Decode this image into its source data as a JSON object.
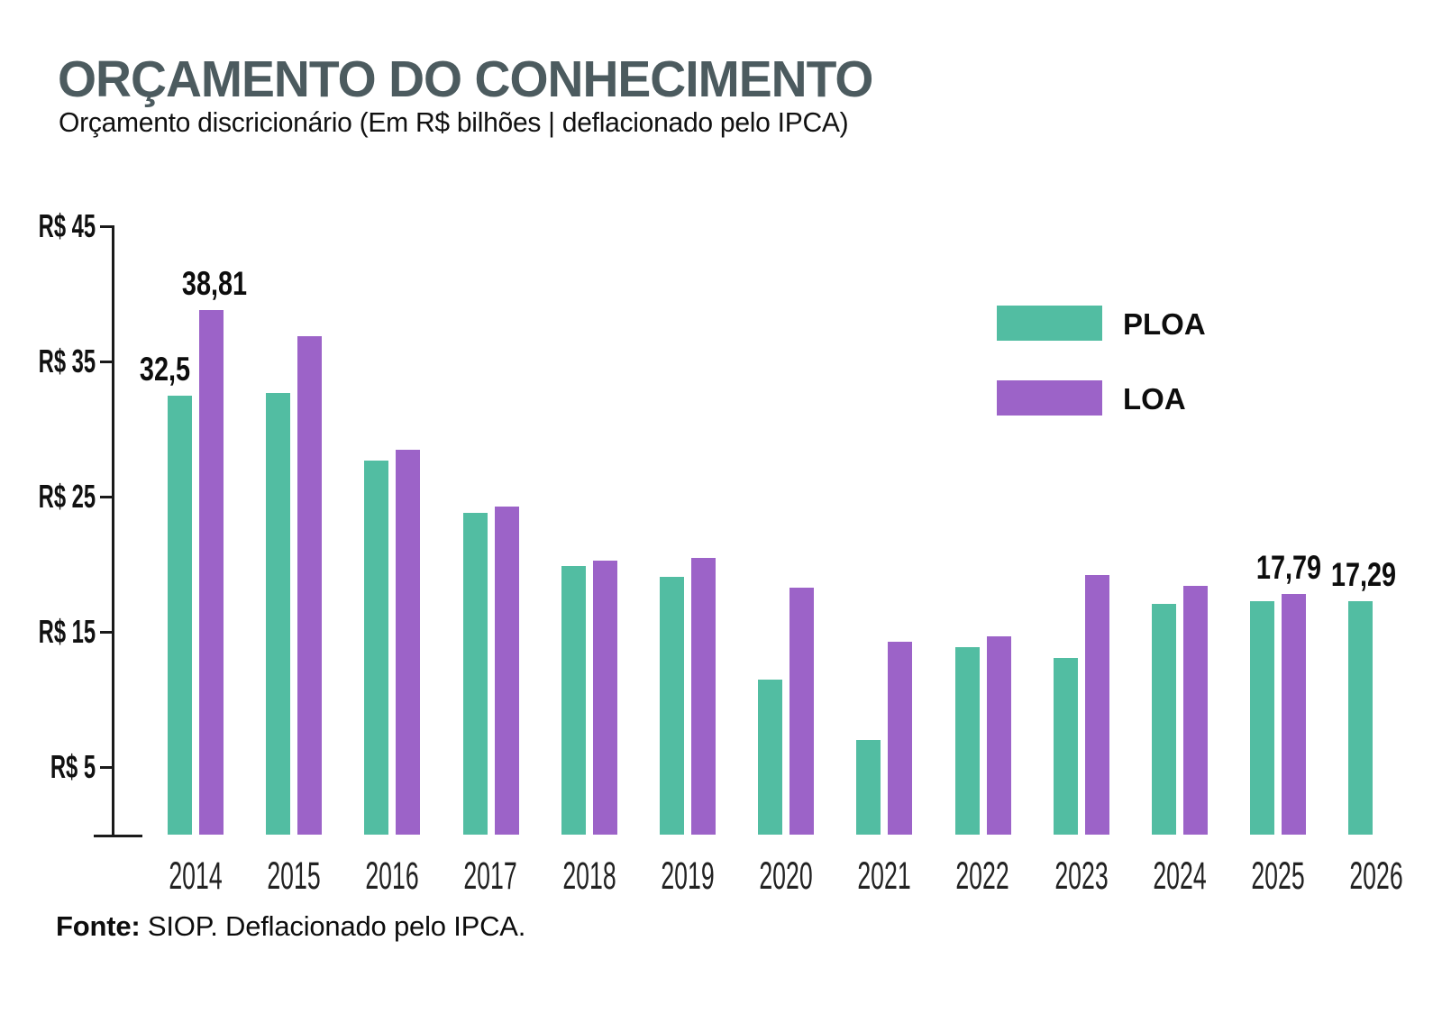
{
  "header": {
    "title": "ORÇAMENTO DO CONHECIMENTO",
    "subtitle": "Orçamento discricionário (Em R$ bilhões | deflacionado pelo IPCA)"
  },
  "colors": {
    "ploa_teal": "#52BDA2",
    "loa_purple": "#9C63C8",
    "title_slate": "#4C5B5F",
    "axis_black": "#1a1a1a"
  },
  "chart_data": {
    "type": "bar",
    "title": "ORÇAMENTO DO CONHECIMENTO",
    "subtitle": "Orçamento discricionário (Em R$ bilhões | deflacionado pelo IPCA)",
    "categories": [
      "2014",
      "2015",
      "2016",
      "2017",
      "2018",
      "2019",
      "2020",
      "2021",
      "2022",
      "2023",
      "2024",
      "2025",
      "2026"
    ],
    "series": [
      {
        "name": "PLOA",
        "color": "#52BDA2",
        "values": [
          32.5,
          32.7,
          27.7,
          23.8,
          19.9,
          19.1,
          11.5,
          7.0,
          13.9,
          13.1,
          17.1,
          17.3,
          17.29
        ]
      },
      {
        "name": "LOA",
        "color": "#9C63C8",
        "values": [
          38.81,
          36.9,
          28.5,
          24.3,
          20.3,
          20.5,
          18.3,
          14.3,
          14.7,
          19.2,
          18.4,
          17.79,
          null
        ]
      }
    ],
    "y_ticks": [
      {
        "value": 45,
        "label": "R$ 45"
      },
      {
        "value": 35,
        "label": "R$ 35"
      },
      {
        "value": 25,
        "label": "R$ 25"
      },
      {
        "value": 15,
        "label": "R$ 15"
      },
      {
        "value": 5,
        "label": "R$ 5"
      }
    ],
    "ylim": [
      0,
      45
    ],
    "grid": false,
    "legend_position": "top-right",
    "legend": [
      {
        "label": "PLOA",
        "color": "#52BDA2"
      },
      {
        "label": "LOA",
        "color": "#9C63C8"
      }
    ],
    "annotations": [
      {
        "year": "2014",
        "series": "PLOA",
        "text": "32,5",
        "dx": -17
      },
      {
        "year": "2014",
        "series": "LOA",
        "text": "38,81",
        "dx": 3
      },
      {
        "year": "2025",
        "series": "LOA",
        "text": "17,79",
        "dx": -6
      },
      {
        "year": "2026",
        "series": "PLOA",
        "text": "17,29",
        "dx": 3
      }
    ]
  },
  "footer": {
    "source_label": "Fonte:",
    "source_text": " SIOP. Deflacionado pelo IPCA."
  }
}
